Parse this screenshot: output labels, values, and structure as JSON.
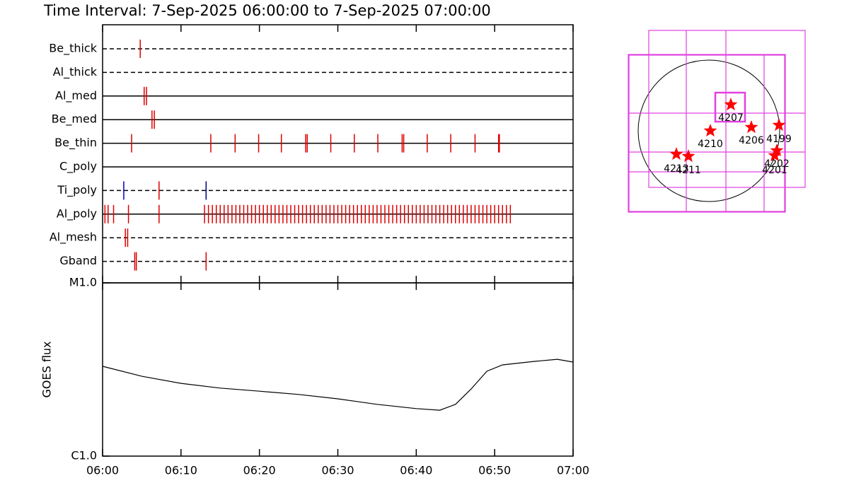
{
  "title": "Time Interval:  7-Sep-2025 06:00:00 to  7-Sep-2025 07:00:00",
  "chart_data": [
    {
      "type": "timeline",
      "xlim": [
        0,
        60
      ],
      "xticks": [
        {
          "value": 0,
          "label": "06:00"
        },
        {
          "value": 10,
          "label": "06:10"
        },
        {
          "value": 20,
          "label": "06:20"
        },
        {
          "value": 30,
          "label": "06:30"
        },
        {
          "value": 40,
          "label": "06:40"
        },
        {
          "value": 50,
          "label": "06:50"
        },
        {
          "value": 60,
          "label": "07:00"
        }
      ],
      "series": [
        {
          "name": "Be_thick",
          "style": "dashed",
          "color": "#dd0000",
          "values": [
            4.8
          ]
        },
        {
          "name": "Al_thick",
          "style": "dashed",
          "color": "#dd0000",
          "values": []
        },
        {
          "name": "Al_med",
          "style": "solid",
          "color": "#dd0000",
          "values": [
            5.3,
            5.6
          ]
        },
        {
          "name": "Be_med",
          "style": "solid",
          "color": "#dd0000",
          "values": [
            6.3,
            6.6
          ]
        },
        {
          "name": "Be_thin",
          "style": "solid",
          "color": "#dd0000",
          "values": [
            3.7,
            13.8,
            16.9,
            19.9,
            22.8,
            25.9,
            26.1,
            29.1,
            32.1,
            35.1,
            38.2,
            38.4,
            41.4,
            44.4,
            47.5,
            50.5,
            50.6
          ]
        },
        {
          "name": "C_poly",
          "style": "solid",
          "color": "#dd0000",
          "values": []
        },
        {
          "name": "Ti_poly",
          "style": "dashed",
          "color": "#dd0000",
          "colors": [
            "#0000cc",
            "#dd0000",
            "#000080"
          ],
          "values": [
            2.7,
            7.2,
            13.2
          ]
        },
        {
          "name": "Al_poly",
          "style": "solid",
          "color": "#dd0000",
          "values": [
            0.3,
            0.7,
            1.4,
            3.3,
            7.2,
            13,
            13.5,
            14,
            14.5,
            15,
            15.5,
            16,
            16.5,
            17,
            17.5,
            18,
            18.5,
            19,
            19.5,
            20,
            20.5,
            21,
            21.5,
            22,
            22.5,
            23,
            23.5,
            24,
            24.5,
            25,
            25.5,
            26,
            26.5,
            27,
            27.5,
            28,
            28.5,
            29,
            29.5,
            30,
            30.5,
            31,
            31.5,
            32,
            32.5,
            33,
            33.5,
            34,
            34.5,
            35,
            35.5,
            36,
            36.5,
            37,
            37.5,
            38,
            38.5,
            39,
            39.5,
            40,
            40.5,
            41,
            41.5,
            42,
            42.5,
            43,
            43.5,
            44,
            44.5,
            45,
            45.5,
            46,
            46.5,
            47,
            47.5,
            48,
            48.5,
            49,
            49.5,
            50,
            50.5,
            51,
            51.5,
            52
          ]
        },
        {
          "name": "Al_mesh",
          "style": "dashed",
          "color": "#dd0000",
          "values": [
            2.9,
            3.2
          ]
        },
        {
          "name": "Gband",
          "style": "dashed",
          "color": "#dd0000",
          "values": [
            4.1,
            4.3,
            13.2
          ]
        }
      ]
    },
    {
      "type": "line",
      "ylabel": "GOES flux",
      "color": "#000000",
      "log_y": true,
      "xlim": [
        0,
        60
      ],
      "xticks": [
        {
          "value": 0,
          "label": "06:00"
        },
        {
          "value": 10,
          "label": "06:10"
        },
        {
          "value": 20,
          "label": "06:20"
        },
        {
          "value": 30,
          "label": "06:30"
        },
        {
          "value": 40,
          "label": "06:40"
        },
        {
          "value": 50,
          "label": "06:50"
        },
        {
          "value": 60,
          "label": "07:00"
        }
      ],
      "ylim": [
        1e-06,
        1e-05
      ],
      "yticks": [
        {
          "value": 1e-06,
          "label": "C1.0"
        },
        {
          "value": 1e-05,
          "label": "M1.0"
        }
      ],
      "x": [
        0,
        5,
        10,
        15,
        20,
        25,
        30,
        35,
        40,
        43,
        45,
        47,
        49,
        51,
        55,
        58,
        60
      ],
      "values": [
        3.3e-06,
        2.89e-06,
        2.63e-06,
        2.47e-06,
        2.37e-06,
        2.27e-06,
        2.14e-06,
        1.99e-06,
        1.88e-06,
        1.84e-06,
        1.99e-06,
        2.44e-06,
        3.09e-06,
        3.36e-06,
        3.52e-06,
        3.62e-06,
        3.49e-06
      ]
    }
  ],
  "map": {
    "labels": [
      "4207",
      "4210",
      "4206",
      "4199",
      "4213",
      "4211",
      "4202",
      "4201"
    ]
  }
}
